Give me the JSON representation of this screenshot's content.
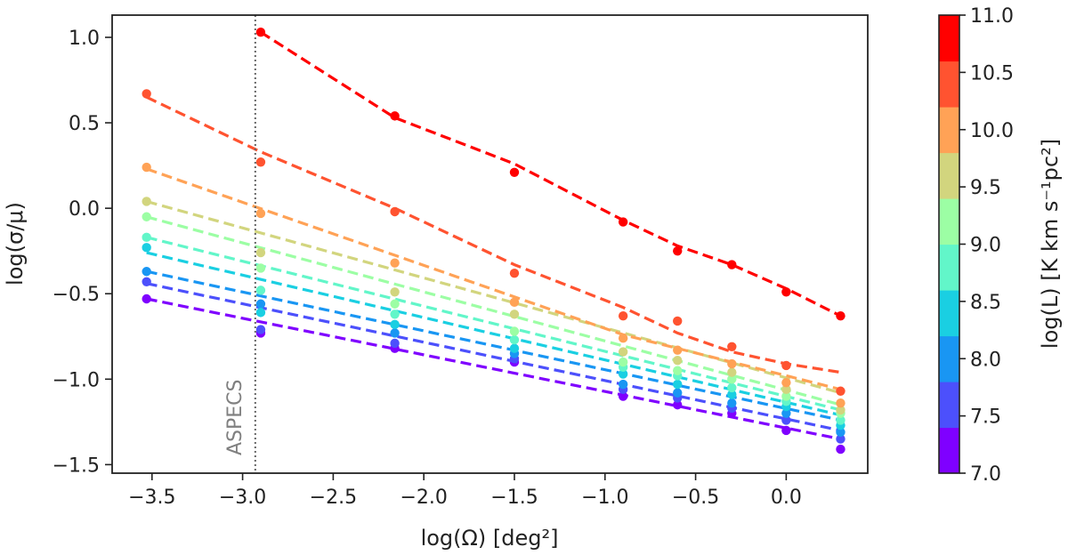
{
  "chart_data": {
    "type": "scatter",
    "xlabel": "log(Ω) [deg²]",
    "ylabel": "log(σ/μ)",
    "xlim": [
      -3.72,
      0.45
    ],
    "ylim": [
      -1.55,
      1.13
    ],
    "xticks": [
      -3.5,
      -3.0,
      -2.5,
      -2.0,
      -1.5,
      -1.0,
      -0.5,
      0.0
    ],
    "xtick_labels": [
      "−3.5",
      "−3.0",
      "−2.5",
      "−2.0",
      "−1.5",
      "−1.0",
      "−0.5",
      "0.0"
    ],
    "yticks": [
      1.0,
      0.5,
      0.0,
      -0.5,
      -1.0,
      -1.5
    ],
    "ytick_labels": [
      "1.0",
      "0.5",
      "0.0",
      "−0.5",
      "−1.0",
      "−1.5"
    ],
    "annotation": {
      "text": "ASPECS",
      "x": -2.93
    },
    "colorbar": {
      "label": "log(L) [K km s⁻¹pc²]",
      "ticks": [
        "7.0",
        "7.5",
        "8.0",
        "8.5",
        "9.0",
        "9.5",
        "10.0",
        "10.5",
        "11.0"
      ],
      "min": 7.0,
      "max": 11.0,
      "bands": [
        "#7f00ff",
        "#4c50fc",
        "#1996f3",
        "#1acfe2",
        "#62f6c9",
        "#9cfea4",
        "#d2d57e",
        "#ffa256",
        "#ff5330",
        "#ff0000"
      ]
    },
    "series": [
      {
        "name": "log(L)=10.75",
        "color": "#ff0000",
        "x": [
          -2.9,
          -2.16,
          -1.5,
          -0.9,
          -0.6,
          -0.3,
          0.0,
          0.3
        ],
        "y": [
          1.03,
          0.54,
          0.21,
          -0.08,
          -0.25,
          -0.33,
          -0.49,
          -0.63
        ],
        "fit": [
          [
            -2.9,
            1.03
          ],
          [
            -2.16,
            0.53
          ],
          [
            -1.5,
            0.26
          ],
          [
            -0.9,
            -0.07
          ],
          [
            -0.6,
            -0.22
          ],
          [
            -0.3,
            -0.33
          ],
          [
            0.0,
            -0.47
          ],
          [
            0.3,
            -0.63
          ]
        ]
      },
      {
        "name": "log(L)=10.25",
        "color": "#ff5330",
        "x": [
          -3.53,
          -2.9,
          -2.16,
          -1.5,
          -0.9,
          -0.6,
          -0.3,
          0.0,
          0.3
        ],
        "y": [
          0.67,
          0.27,
          -0.02,
          -0.38,
          -0.63,
          -0.66,
          -0.81,
          -0.92,
          -1.07
        ],
        "fit": [
          [
            -3.53,
            0.65
          ],
          [
            -2.9,
            0.33
          ],
          [
            -2.16,
            0.0
          ],
          [
            -1.5,
            -0.33
          ],
          [
            -0.9,
            -0.58
          ],
          [
            -0.6,
            -0.73
          ],
          [
            -0.3,
            -0.84
          ],
          [
            0.0,
            -0.91
          ],
          [
            0.3,
            -0.96
          ]
        ]
      },
      {
        "name": "log(L)=9.75",
        "color": "#ffa256",
        "x": [
          -3.53,
          -2.9,
          -2.16,
          -1.5,
          -0.9,
          -0.6,
          -0.3,
          0.0,
          0.3
        ],
        "y": [
          0.24,
          -0.03,
          -0.32,
          -0.55,
          -0.76,
          -0.83,
          -0.91,
          -1.02,
          -1.14
        ],
        "fit": [
          [
            -3.53,
            0.23
          ],
          [
            -0.9,
            -0.74
          ],
          [
            0.3,
            -1.06
          ]
        ]
      },
      {
        "name": "log(L)=9.5",
        "color": "#d2d57e",
        "x": [
          -3.53,
          -2.9,
          -2.16,
          -1.5,
          -0.9,
          -0.6,
          -0.3,
          0.0,
          0.3
        ],
        "y": [
          0.04,
          -0.26,
          -0.49,
          -0.62,
          -0.84,
          -0.89,
          -0.96,
          -1.06,
          -1.18
        ],
        "fit": [
          [
            -3.53,
            0.04
          ],
          [
            0.3,
            -1.08
          ]
        ]
      },
      {
        "name": "log(L)=9.25",
        "color": "#9cfea4",
        "x": [
          -3.53,
          -2.9,
          -2.16,
          -1.5,
          -0.9,
          -0.6,
          -0.3,
          0.0,
          0.3
        ],
        "y": [
          -0.05,
          -0.35,
          -0.56,
          -0.72,
          -0.9,
          -0.95,
          -1.0,
          -1.1,
          -1.2
        ],
        "fit": [
          [
            -3.53,
            -0.05
          ],
          [
            0.3,
            -1.15
          ]
        ]
      },
      {
        "name": "log(L)=8.75",
        "color": "#62f6c9",
        "x": [
          -3.53,
          -2.9,
          -2.16,
          -1.5,
          -0.9,
          -0.6,
          -0.3,
          0.0,
          0.3
        ],
        "y": [
          -0.17,
          -0.48,
          -0.62,
          -0.77,
          -0.93,
          -0.98,
          -1.05,
          -1.13,
          -1.24
        ],
        "fit": [
          [
            -3.53,
            -0.17
          ],
          [
            0.3,
            -1.18
          ]
        ]
      },
      {
        "name": "log(L)=8.5",
        "color": "#1acfe2",
        "x": [
          -3.53,
          -2.9,
          -2.16,
          -1.5,
          -0.9,
          -0.6,
          -0.3,
          0.0,
          0.3
        ],
        "y": [
          -0.23,
          -0.61,
          -0.68,
          -0.82,
          -0.97,
          -1.03,
          -1.09,
          -1.16,
          -1.27
        ],
        "fit": [
          [
            -3.53,
            -0.26
          ],
          [
            0.3,
            -1.21
          ]
        ]
      },
      {
        "name": "log(L)=8.0",
        "color": "#1996f3",
        "x": [
          -3.53,
          -2.9,
          -2.16,
          -1.5,
          -0.9,
          -0.6,
          -0.3,
          0.0,
          0.3
        ],
        "y": [
          -0.37,
          -0.56,
          -0.73,
          -0.85,
          -1.03,
          -1.08,
          -1.14,
          -1.2,
          -1.31
        ],
        "fit": [
          [
            -3.53,
            -0.37
          ],
          [
            0.3,
            -1.24
          ]
        ]
      },
      {
        "name": "log(L)=7.5",
        "color": "#4c50fc",
        "x": [
          -3.53,
          -2.9,
          -2.16,
          -1.5,
          -0.9,
          -0.6,
          -0.3,
          0.0,
          0.3
        ],
        "y": [
          -0.43,
          -0.71,
          -0.79,
          -0.88,
          -1.06,
          -1.11,
          -1.17,
          -1.24,
          -1.35
        ],
        "fit": [
          [
            -3.53,
            -0.44
          ],
          [
            0.3,
            -1.3
          ]
        ]
      },
      {
        "name": "log(L)=7.1",
        "color": "#7f00ff",
        "x": [
          -3.53,
          -2.9,
          -2.16,
          -1.5,
          -0.9,
          -0.6,
          -0.3,
          0.0,
          0.3
        ],
        "y": [
          -0.53,
          -0.73,
          -0.82,
          -0.9,
          -1.1,
          -1.15,
          -1.2,
          -1.3,
          -1.41
        ],
        "fit": [
          [
            -3.53,
            -0.53
          ],
          [
            0.3,
            -1.35
          ]
        ]
      }
    ]
  }
}
